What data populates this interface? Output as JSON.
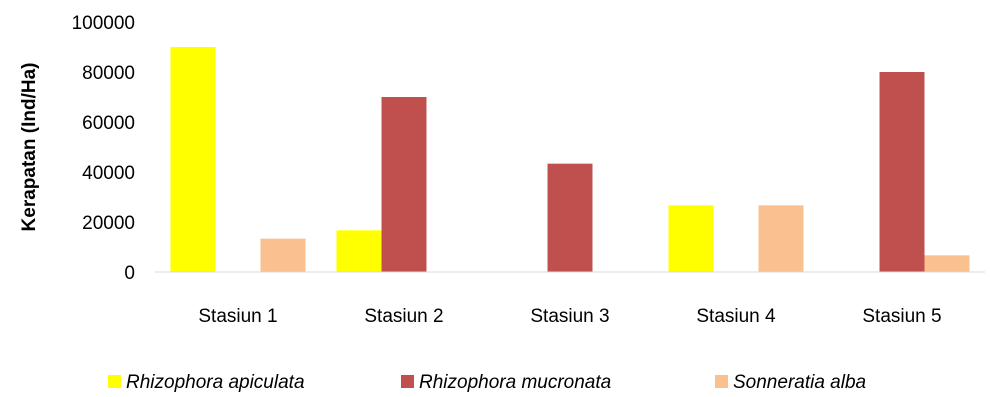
{
  "chart_data": {
    "type": "bar",
    "title": "",
    "xlabel": "",
    "ylabel": "Kerapatan (Ind/Ha)",
    "ylim": [
      0,
      100000
    ],
    "yticks": [
      0,
      20000,
      40000,
      60000,
      80000,
      100000
    ],
    "categories": [
      "Stasiun 1",
      "Stasiun 2",
      "Stasiun 3",
      "Stasiun 4",
      "Stasiun 5"
    ],
    "series": [
      {
        "name": "Rhizophora apiculata",
        "color": "#FFFF00",
        "values": [
          90000,
          16667,
          0,
          26667,
          0
        ]
      },
      {
        "name": "Rhizophora mucronata",
        "color": "#C0504D",
        "values": [
          0,
          70000,
          43333,
          0,
          80000
        ]
      },
      {
        "name": "Sonneratia alba",
        "color": "#FAC090",
        "values": [
          13333,
          0,
          0,
          26667,
          6667
        ]
      }
    ],
    "grid": false,
    "legend_position": "bottom"
  }
}
